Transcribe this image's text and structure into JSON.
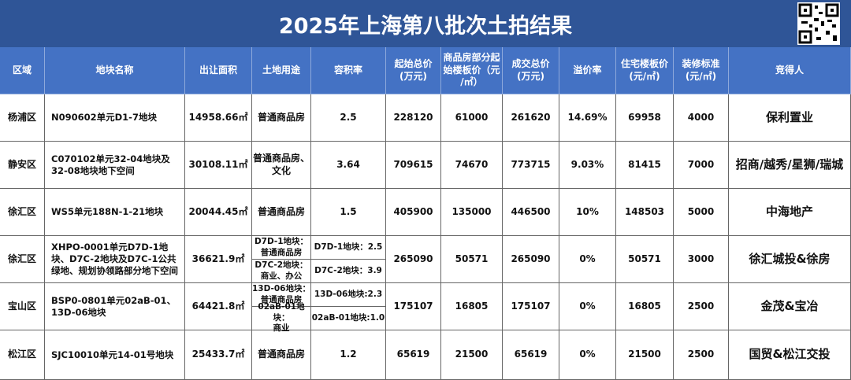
{
  "header": {
    "title": "2025年上海第八批次土拍结果"
  },
  "table": {
    "columns": [
      "区域",
      "地块名称",
      "出让面积",
      "土地用途",
      "容积率",
      "起始总价\n(万元)",
      "商品房部分起\n始楼板价（元\n/㎡）",
      "成交总价\n(万元)",
      "溢价率",
      "住宅楼板价\n(元/㎡)",
      "装修标准\n(元/㎡)",
      "竞得人"
    ],
    "rows": [
      [
        "杨浦区",
        "N090602单元D1-7地块",
        "14958.66㎡",
        "普通商品房",
        "2.5",
        "228120",
        "61000",
        "261620",
        "14.69%",
        "69958",
        "4000",
        "保利置业"
      ],
      [
        "静安区",
        "C070102单元32-04地块及32-08地块地下空间",
        "30108.11㎡",
        "普通商品房、\n文化",
        "3.64",
        "709615",
        "74670",
        "773715",
        "9.03%",
        "81415",
        "7000",
        "招商/越秀/星狮/瑞城"
      ],
      [
        "徐汇区",
        "WS5单元188N-1-21地块",
        "20044.45㎡",
        "普通商品房",
        "1.5",
        "405900",
        "135000",
        "446500",
        "10%",
        "148503",
        "5000",
        "中海地产"
      ],
      [
        "徐汇区",
        "XHPO-0001单元D7D-1地块、D7C-2地块及D7C-1公共绿地、规划协领路部分地下空间",
        "36621.9㎡",
        [
          "D7D-1地块：\n普通商品房",
          "D7C-2地块：\n商业、办公"
        ],
        [
          "D7D-1地块：2.5",
          "D7C-2地块：3.9"
        ],
        "265090",
        "50571",
        "265090",
        "0%",
        "50571",
        "3000",
        "徐汇城投&徐房"
      ],
      [
        "宝山区",
        "BSP0-0801单元02aB-01、13D-06地块",
        "64421.8㎡",
        [
          "13D-06地块：\n普通商品房",
          "02aB-01地块：\n商业"
        ],
        [
          "13D-06地块:2.3",
          "02aB-01地块:1.0"
        ],
        "175107",
        "16805",
        "175107",
        "0%",
        "16805",
        "2500",
        "金茂&宝冶"
      ],
      [
        "松江区",
        "SJC10010单元14-01号地块",
        "25433.7㎡",
        "普通商品房",
        "1.2",
        "65619",
        "21500",
        "65619",
        "0%",
        "21500",
        "2500",
        "国贸&松江交投"
      ]
    ]
  }
}
